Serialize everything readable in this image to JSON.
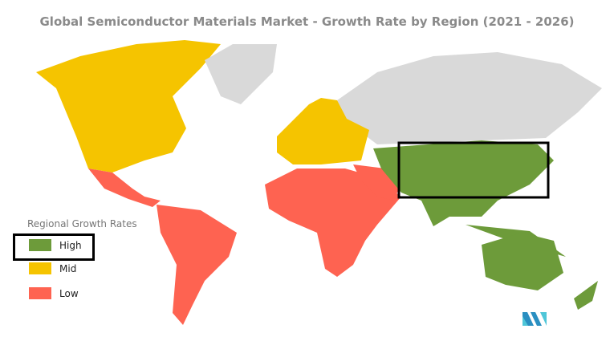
{
  "title": "Global Semiconductor Materials Market - Growth Rate by Region (2021 - 2026)",
  "legend": {
    "title": "Regional Growth Rates",
    "items": [
      {
        "label": "High",
        "color": "#6d9b3a"
      },
      {
        "label": "Mid",
        "color": "#f5c400"
      },
      {
        "label": "Low",
        "color": "#fe6351"
      }
    ],
    "highlighted": "High"
  },
  "regions": {
    "north_america": "Mid",
    "europe": "Mid",
    "latin_america": "Low",
    "middle_east_africa": "Low",
    "asia_pacific": "High",
    "no_data_color": "#d9d9d9"
  },
  "highlight_region": "asia_pacific",
  "logo": "mordor-intelligence-logo"
}
